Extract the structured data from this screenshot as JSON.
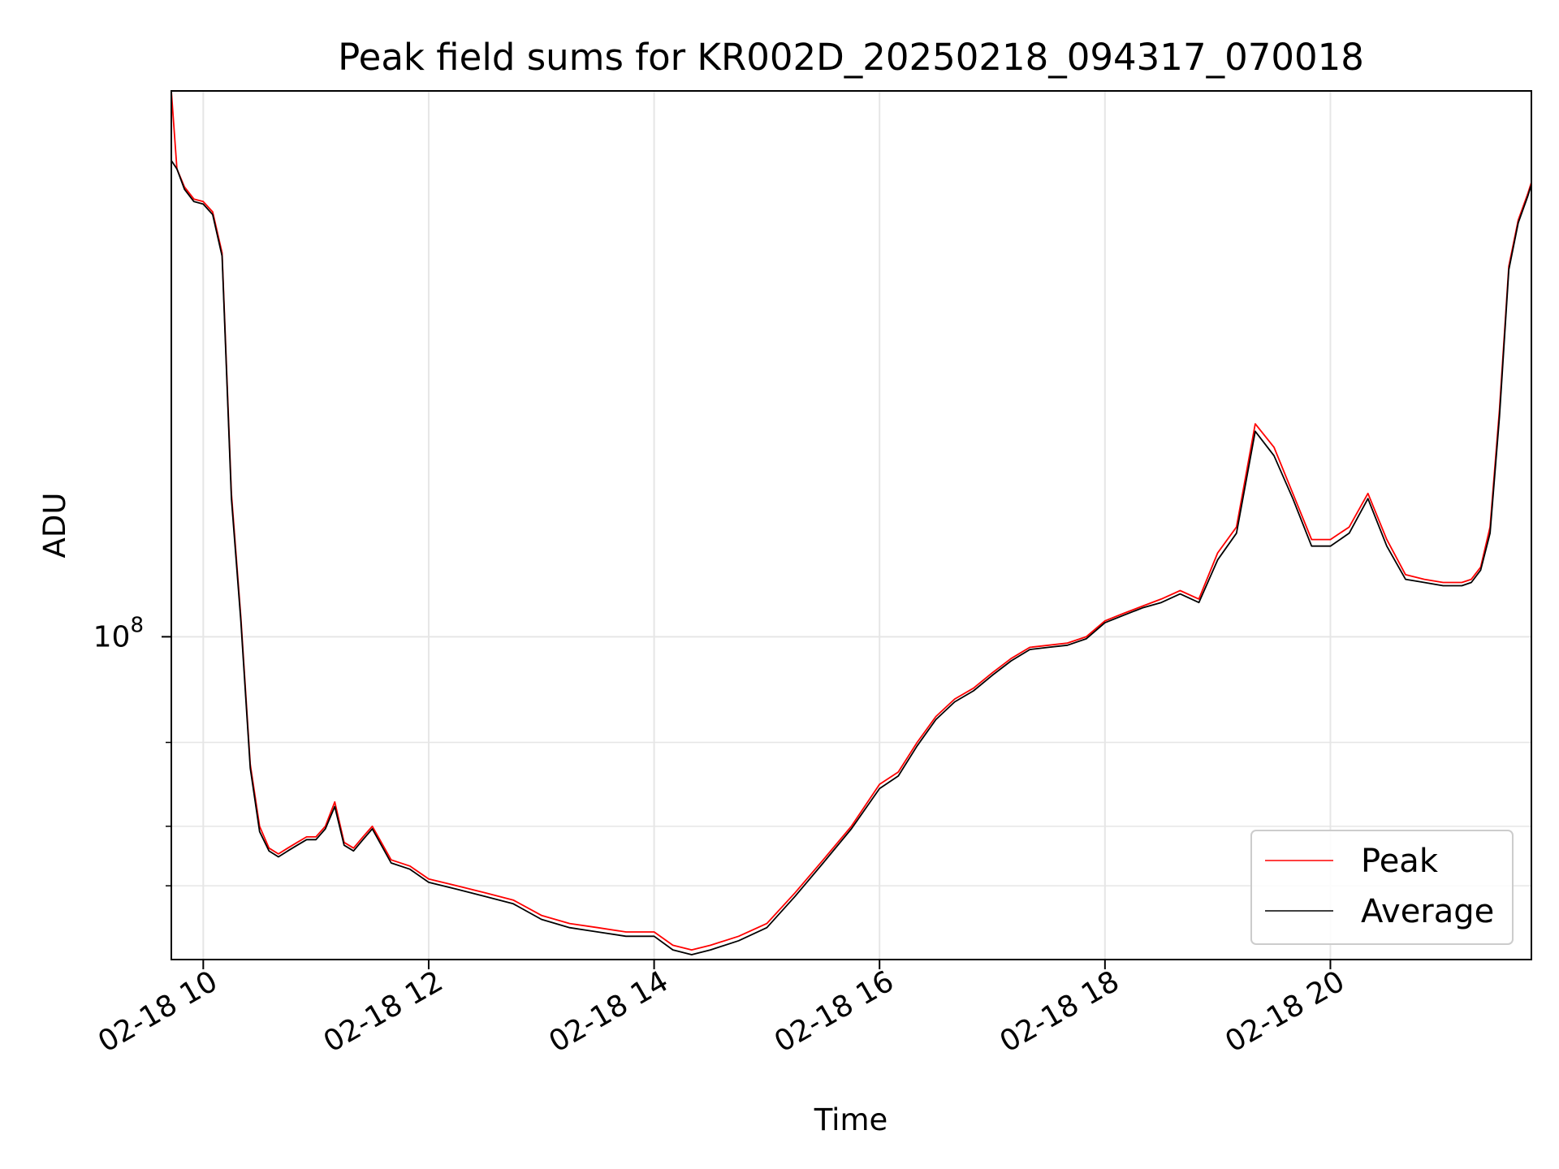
{
  "chart_data": {
    "type": "line",
    "title": "Peak field sums for KR002D_20250218_094317_070018",
    "xlabel": "Time",
    "ylabel": "ADU",
    "x_scale": "time",
    "y_scale": "log",
    "xlim": [
      "2025-02-18T09:43",
      "2025-02-18T21:47"
    ],
    "ylim": [
      21000000,
      1400000000
    ],
    "xticks": [
      {
        "label": "02-18 10",
        "value": "2025-02-18T10:00"
      },
      {
        "label": "02-18 12",
        "value": "2025-02-18T12:00"
      },
      {
        "label": "02-18 14",
        "value": "2025-02-18T14:00"
      },
      {
        "label": "02-18 16",
        "value": "2025-02-18T16:00"
      },
      {
        "label": "02-18 18",
        "value": "2025-02-18T18:00"
      },
      {
        "label": "02-18 20",
        "value": "2025-02-18T20:00"
      }
    ],
    "ytick_major": {
      "base": "10",
      "exponent": "8",
      "value": 100000000
    },
    "ytick_minor": [
      30000000,
      40000000,
      60000000
    ],
    "grid": true,
    "legend_position": "lower-right",
    "legend": [
      "Peak",
      "Average"
    ],
    "x": [
      "09:43",
      "09:46",
      "09:50",
      "09:55",
      "10:00",
      "10:05",
      "10:10",
      "10:15",
      "10:20",
      "10:25",
      "10:30",
      "10:35",
      "10:40",
      "10:45",
      "10:50",
      "10:55",
      "11:00",
      "11:05",
      "11:10",
      "11:15",
      "11:20",
      "11:25",
      "11:30",
      "11:40",
      "11:50",
      "12:00",
      "12:15",
      "12:30",
      "12:45",
      "13:00",
      "13:15",
      "13:30",
      "13:45",
      "14:00",
      "14:10",
      "14:20",
      "14:30",
      "14:45",
      "15:00",
      "15:15",
      "15:30",
      "15:45",
      "16:00",
      "16:10",
      "16:20",
      "16:30",
      "16:40",
      "16:50",
      "17:00",
      "17:10",
      "17:20",
      "17:30",
      "17:40",
      "17:50",
      "18:00",
      "18:10",
      "18:20",
      "18:30",
      "18:40",
      "18:50",
      "19:00",
      "19:10",
      "19:20",
      "19:30",
      "19:40",
      "19:50",
      "20:00",
      "20:10",
      "20:20",
      "20:30",
      "20:40",
      "20:50",
      "21:00",
      "21:10",
      "21:15",
      "21:20",
      "21:25",
      "21:30",
      "21:35",
      "21:40",
      "21:45",
      "21:47"
    ],
    "series": [
      {
        "name": "Peak",
        "color": "#ff0000",
        "values": [
          1400000000,
          960000000,
          880000000,
          830000000,
          820000000,
          780000000,
          640000000,
          200000000,
          110000000,
          54000000,
          40000000,
          36000000,
          35000000,
          36000000,
          37000000,
          38000000,
          38000000,
          40000000,
          45000000,
          37000000,
          36000000,
          38000000,
          40000000,
          34000000,
          33000000,
          31000000,
          30000000,
          29000000,
          28000000,
          26000000,
          25000000,
          24500000,
          24000000,
          24000000,
          22500000,
          22000000,
          22500000,
          23500000,
          25000000,
          29000000,
          34000000,
          40000000,
          49000000,
          52000000,
          60000000,
          68000000,
          74000000,
          78000000,
          84000000,
          90000000,
          95000000,
          96000000,
          97000000,
          100000000,
          108000000,
          112000000,
          116000000,
          120000000,
          125000000,
          120000000,
          150000000,
          170000000,
          280000000,
          250000000,
          200000000,
          160000000,
          160000000,
          170000000,
          200000000,
          160000000,
          135000000,
          132000000,
          130000000,
          130000000,
          132000000,
          140000000,
          170000000,
          300000000,
          600000000,
          750000000,
          850000000,
          900000000
        ]
      },
      {
        "name": "Average",
        "color": "#000000",
        "values": [
          1000000000,
          960000000,
          870000000,
          820000000,
          810000000,
          770000000,
          630000000,
          195000000,
          108000000,
          53000000,
          39000000,
          35500000,
          34500000,
          35500000,
          36500000,
          37500000,
          37500000,
          39500000,
          44000000,
          36500000,
          35500000,
          37500000,
          39500000,
          33500000,
          32500000,
          30500000,
          29500000,
          28500000,
          27500000,
          25500000,
          24500000,
          24000000,
          23500000,
          23500000,
          22000000,
          21500000,
          22000000,
          23000000,
          24500000,
          28500000,
          33500000,
          39500000,
          48000000,
          51000000,
          59000000,
          67000000,
          73000000,
          77000000,
          83000000,
          89000000,
          94000000,
          95000000,
          96000000,
          99000000,
          107000000,
          111000000,
          115000000,
          118000000,
          123000000,
          118000000,
          145000000,
          165000000,
          270000000,
          240000000,
          195000000,
          155000000,
          155000000,
          165000000,
          195000000,
          155000000,
          132000000,
          130000000,
          128000000,
          128000000,
          130000000,
          138000000,
          165000000,
          290000000,
          590000000,
          740000000,
          840000000,
          890000000
        ]
      }
    ]
  }
}
